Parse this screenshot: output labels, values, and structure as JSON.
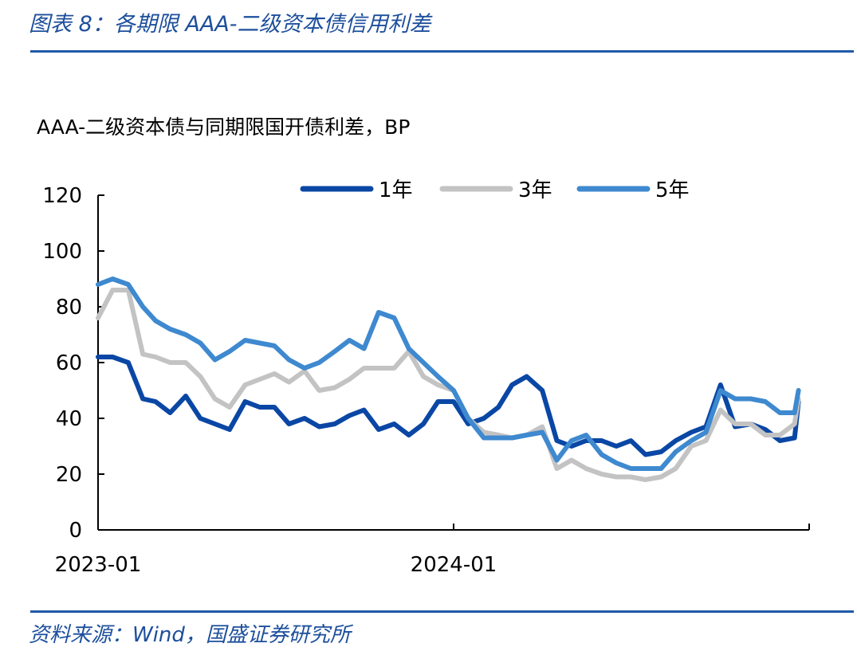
{
  "figure_title": "图表 8：各期限 AAA-二级资本债信用利差",
  "source": "资料来源：Wind，国盛证券研究所",
  "colors": {
    "rule": "#1f5aa8",
    "title": "#1d4f9c"
  },
  "chart_data": {
    "type": "line",
    "title": "AAA-二级资本债与同期限国开债利差，BP",
    "xlabel": "",
    "ylabel": "",
    "ylim": [
      0,
      120
    ],
    "xlim": [
      "2023-01-01",
      "2024-12-31"
    ],
    "yticks": [
      "0",
      "20",
      "40",
      "60",
      "80",
      "100",
      "120"
    ],
    "xticks": [
      {
        "date": "2023-01-01",
        "label": "2023-01"
      },
      {
        "date": "2024-01-01",
        "label": "2024-01"
      },
      {
        "date": "2025-01-01",
        "label": ""
      }
    ],
    "grid": false,
    "legend": "top",
    "x": [
      "2023-01-01",
      "2023-01-16",
      "2023-02-01",
      "2023-02-16",
      "2023-03-01",
      "2023-03-16",
      "2023-04-01",
      "2023-04-16",
      "2023-05-01",
      "2023-05-16",
      "2023-06-01",
      "2023-06-16",
      "2023-07-01",
      "2023-07-16",
      "2023-08-01",
      "2023-08-16",
      "2023-09-01",
      "2023-09-16",
      "2023-10-01",
      "2023-10-16",
      "2023-11-01",
      "2023-11-16",
      "2023-12-01",
      "2023-12-16",
      "2024-01-01",
      "2024-01-16",
      "2024-02-01",
      "2024-02-16",
      "2024-03-01",
      "2024-03-16",
      "2024-04-01",
      "2024-04-16",
      "2024-05-01",
      "2024-05-16",
      "2024-06-01",
      "2024-06-16",
      "2024-07-01",
      "2024-07-16",
      "2024-08-01",
      "2024-08-16",
      "2024-09-01",
      "2024-09-16",
      "2024-10-01",
      "2024-10-16",
      "2024-11-01",
      "2024-11-16",
      "2024-12-01",
      "2024-12-16",
      "2024-12-20"
    ],
    "series": [
      {
        "name": "1年",
        "color": "#0a47a5",
        "values": [
          62,
          62,
          60,
          47,
          46,
          42,
          48,
          40,
          38,
          36,
          46,
          44,
          44,
          38,
          40,
          37,
          38,
          41,
          43,
          36,
          38,
          34,
          38,
          46,
          46,
          38,
          40,
          44,
          52,
          55,
          50,
          32,
          30,
          32,
          32,
          30,
          32,
          27,
          28,
          32,
          35,
          37,
          52,
          37,
          38,
          36,
          32,
          33,
          46
        ]
      },
      {
        "name": "3年",
        "color": "#c3c3c3",
        "values": [
          76,
          86,
          86,
          63,
          62,
          60,
          60,
          55,
          47,
          44,
          52,
          54,
          56,
          53,
          57,
          50,
          51,
          54,
          58,
          58,
          58,
          64,
          55,
          52,
          50,
          40,
          35,
          34,
          33,
          34,
          37,
          22,
          25,
          22,
          20,
          19,
          19,
          18,
          19,
          22,
          30,
          32,
          43,
          38,
          38,
          34,
          34,
          38,
          47
        ]
      },
      {
        "name": "5年",
        "color": "#3e89cf",
        "values": [
          88,
          90,
          88,
          80,
          75,
          72,
          70,
          67,
          61,
          64,
          68,
          67,
          66,
          61,
          58,
          60,
          64,
          68,
          65,
          78,
          76,
          65,
          60,
          55,
          50,
          40,
          33,
          33,
          33,
          34,
          35,
          25,
          32,
          34,
          27,
          24,
          22,
          22,
          22,
          28,
          32,
          35,
          50,
          47,
          47,
          46,
          42,
          42,
          50
        ]
      }
    ]
  }
}
